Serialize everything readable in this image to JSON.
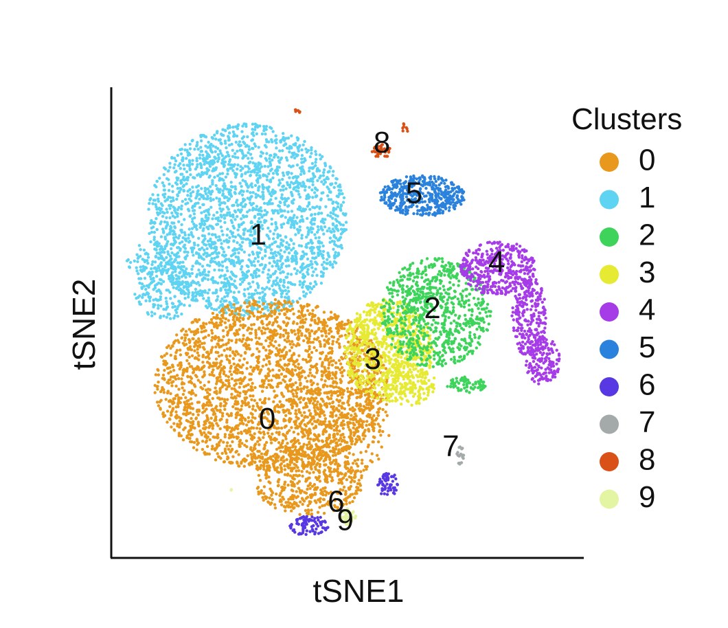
{
  "chart_data": {
    "type": "scatter",
    "title": "",
    "xlabel": "tSNE1",
    "ylabel": "tSNE2",
    "xlim": [
      -50,
      50
    ],
    "ylim": [
      -50,
      50
    ],
    "grid": false,
    "legend": {
      "title": "Clusters",
      "placement": "right"
    },
    "series": [
      {
        "name": "0",
        "color": "#E8981C",
        "centroid": [
          -16,
          -22
        ],
        "label_at": [
          -16,
          -22
        ]
      },
      {
        "name": "1",
        "color": "#5FD3F2",
        "centroid": [
          -20,
          20
        ],
        "label_at": [
          -18,
          18
        ]
      },
      {
        "name": "2",
        "color": "#3ED45C",
        "centroid": [
          18,
          5
        ],
        "label_at": [
          20,
          2
        ]
      },
      {
        "name": "3",
        "color": "#E6EA32",
        "centroid": [
          8,
          -5
        ],
        "label_at": [
          7,
          -9
        ]
      },
      {
        "name": "4",
        "color": "#A63CE8",
        "centroid": [
          37,
          7
        ],
        "label_at": [
          34,
          12
        ]
      },
      {
        "name": "5",
        "color": "#2A82DC",
        "centroid": [
          17,
          27
        ],
        "label_at": [
          16,
          27
        ]
      },
      {
        "name": "6",
        "color": "#5838E2",
        "centroid": [
          -5,
          -45
        ],
        "label_at": [
          -1,
          -40
        ]
      },
      {
        "name": "7",
        "color": "#A4AAAA",
        "centroid": [
          24,
          -28
        ],
        "label_at": [
          24,
          -28
        ]
      },
      {
        "name": "8",
        "color": "#D95116",
        "centroid": [
          8,
          40
        ],
        "label_at": [
          9,
          38
        ]
      },
      {
        "name": "9",
        "color": "#E3F5A3",
        "centroid": [
          -1,
          -44
        ],
        "label_at": [
          1,
          -44
        ]
      }
    ]
  }
}
